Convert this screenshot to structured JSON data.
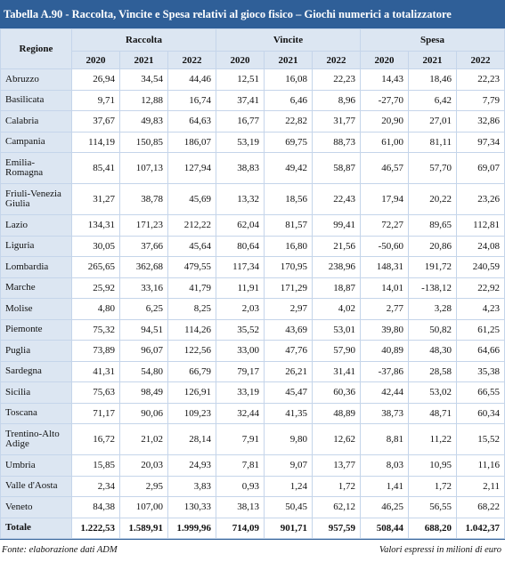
{
  "title": "Tabella A.90 - Raccolta, Vincite e Spesa relativi al gioco fisico – Giochi numerici a totalizzatore",
  "header": {
    "region": "Regione",
    "groups": [
      {
        "name": "Raccolta",
        "years": [
          "2020",
          "2021",
          "2022"
        ]
      },
      {
        "name": "Vincite",
        "years": [
          "2020",
          "2021",
          "2022"
        ]
      },
      {
        "name": "Spesa",
        "years": [
          "2020",
          "2021",
          "2022"
        ]
      }
    ]
  },
  "rows": [
    {
      "region": "Abruzzo",
      "values": [
        "26,94",
        "34,54",
        "44,46",
        "12,51",
        "16,08",
        "22,23",
        "14,43",
        "18,46",
        "22,23"
      ]
    },
    {
      "region": "Basilicata",
      "values": [
        "9,71",
        "12,88",
        "16,74",
        "37,41",
        "6,46",
        "8,96",
        "-27,70",
        "6,42",
        "7,79"
      ]
    },
    {
      "region": "Calabria",
      "values": [
        "37,67",
        "49,83",
        "64,63",
        "16,77",
        "22,82",
        "31,77",
        "20,90",
        "27,01",
        "32,86"
      ]
    },
    {
      "region": "Campania",
      "values": [
        "114,19",
        "150,85",
        "186,07",
        "53,19",
        "69,75",
        "88,73",
        "61,00",
        "81,11",
        "97,34"
      ]
    },
    {
      "region": "Emilia-Romagna",
      "values": [
        "85,41",
        "107,13",
        "127,94",
        "38,83",
        "49,42",
        "58,87",
        "46,57",
        "57,70",
        "69,07"
      ]
    },
    {
      "region": "Friuli-Venezia Giulia",
      "values": [
        "31,27",
        "38,78",
        "45,69",
        "13,32",
        "18,56",
        "22,43",
        "17,94",
        "20,22",
        "23,26"
      ]
    },
    {
      "region": "Lazio",
      "values": [
        "134,31",
        "171,23",
        "212,22",
        "62,04",
        "81,57",
        "99,41",
        "72,27",
        "89,65",
        "112,81"
      ]
    },
    {
      "region": "Liguria",
      "values": [
        "30,05",
        "37,66",
        "45,64",
        "80,64",
        "16,80",
        "21,56",
        "-50,60",
        "20,86",
        "24,08"
      ]
    },
    {
      "region": "Lombardia",
      "values": [
        "265,65",
        "362,68",
        "479,55",
        "117,34",
        "170,95",
        "238,96",
        "148,31",
        "191,72",
        "240,59"
      ]
    },
    {
      "region": "Marche",
      "values": [
        "25,92",
        "33,16",
        "41,79",
        "11,91",
        "171,29",
        "18,87",
        "14,01",
        "-138,12",
        "22,92"
      ]
    },
    {
      "region": "Molise",
      "values": [
        "4,80",
        "6,25",
        "8,25",
        "2,03",
        "2,97",
        "4,02",
        "2,77",
        "3,28",
        "4,23"
      ]
    },
    {
      "region": "Piemonte",
      "values": [
        "75,32",
        "94,51",
        "114,26",
        "35,52",
        "43,69",
        "53,01",
        "39,80",
        "50,82",
        "61,25"
      ]
    },
    {
      "region": "Puglia",
      "values": [
        "73,89",
        "96,07",
        "122,56",
        "33,00",
        "47,76",
        "57,90",
        "40,89",
        "48,30",
        "64,66"
      ]
    },
    {
      "region": "Sardegna",
      "values": [
        "41,31",
        "54,80",
        "66,79",
        "79,17",
        "26,21",
        "31,41",
        "-37,86",
        "28,58",
        "35,38"
      ]
    },
    {
      "region": "Sicilia",
      "values": [
        "75,63",
        "98,49",
        "126,91",
        "33,19",
        "45,47",
        "60,36",
        "42,44",
        "53,02",
        "66,55"
      ]
    },
    {
      "region": "Toscana",
      "values": [
        "71,17",
        "90,06",
        "109,23",
        "32,44",
        "41,35",
        "48,89",
        "38,73",
        "48,71",
        "60,34"
      ]
    },
    {
      "region": "Trentino-Alto Adige",
      "values": [
        "16,72",
        "21,02",
        "28,14",
        "7,91",
        "9,80",
        "12,62",
        "8,81",
        "11,22",
        "15,52"
      ]
    },
    {
      "region": "Umbria",
      "values": [
        "15,85",
        "20,03",
        "24,93",
        "7,81",
        "9,07",
        "13,77",
        "8,03",
        "10,95",
        "11,16"
      ]
    },
    {
      "region": "Valle d'Aosta",
      "values": [
        "2,34",
        "2,95",
        "3,83",
        "0,93",
        "1,24",
        "1,72",
        "1,41",
        "1,72",
        "2,11"
      ]
    },
    {
      "region": "Veneto",
      "values": [
        "84,38",
        "107,00",
        "130,33",
        "38,13",
        "50,45",
        "62,12",
        "46,25",
        "56,55",
        "68,22"
      ]
    }
  ],
  "total": {
    "region": "Totale",
    "values": [
      "1.222,53",
      "1.589,91",
      "1.999,96",
      "714,09",
      "901,71",
      "957,59",
      "508,44",
      "688,20",
      "1.042,37"
    ]
  },
  "footer": {
    "source": "Fonte: elaborazione dati ADM",
    "note": "Valori espressi in milioni di euro"
  }
}
